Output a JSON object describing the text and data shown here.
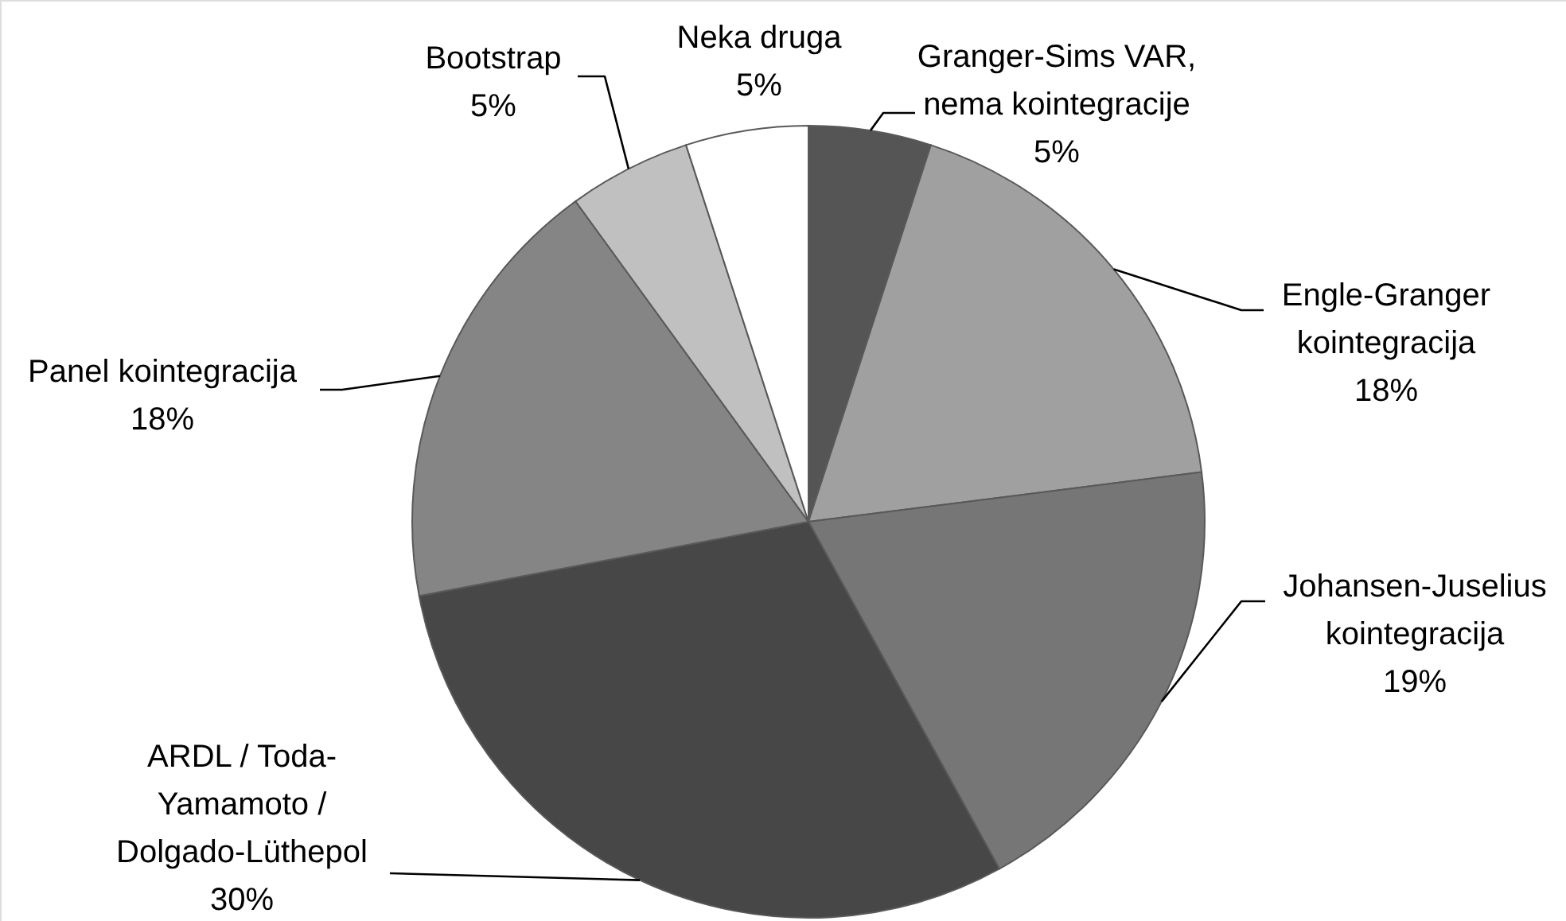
{
  "chart_data": {
    "type": "pie",
    "categories": [
      "Granger-Sims VAR,\nnema kointegracije",
      "Engle-Granger\nkointegracija",
      "Johansen-Juselius\nkointegracija",
      "ARDL / Toda-\nYamamoto /\nDolgado-Lüthepol",
      "Panel kointegracija",
      "Bootstrap",
      "Neka druga"
    ],
    "values": [
      5,
      18,
      19,
      30,
      18,
      5,
      5
    ],
    "value_labels": [
      "5%",
      "18%",
      "19%",
      "30%",
      "18%",
      "5%",
      "5%"
    ],
    "colors": [
      "#555555",
      "#a0a0a0",
      "#767676",
      "#474747",
      "#858585",
      "#c0c0c0",
      "#ffffff"
    ]
  }
}
